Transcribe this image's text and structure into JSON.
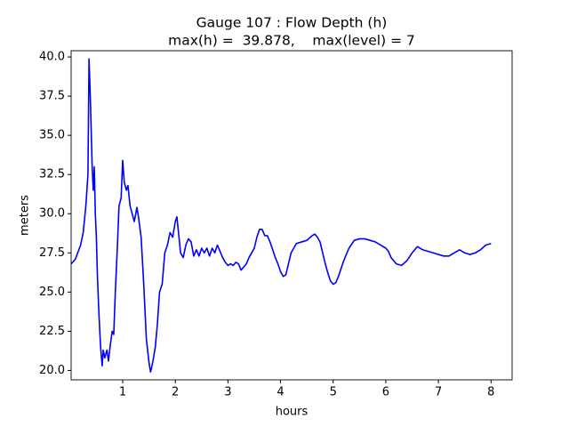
{
  "chart_data": {
    "type": "line",
    "title": "Gauge 107 : Flow Depth (h)",
    "subtitle": "max(h) =  39.878,    max(level) = 7",
    "xlabel": "hours",
    "ylabel": "meters",
    "color": "#0000ff",
    "x": [
      0.02,
      0.1,
      0.2,
      0.25,
      0.3,
      0.34,
      0.36,
      0.38,
      0.4,
      0.42,
      0.44,
      0.46,
      0.48,
      0.5,
      0.52,
      0.55,
      0.58,
      0.61,
      0.63,
      0.66,
      0.7,
      0.73,
      0.76,
      0.8,
      0.83,
      0.86,
      0.9,
      0.93,
      0.97,
      1.0,
      1.03,
      1.07,
      1.1,
      1.14,
      1.18,
      1.22,
      1.27,
      1.3,
      1.35,
      1.4,
      1.45,
      1.5,
      1.53,
      1.57,
      1.62,
      1.66,
      1.7,
      1.75,
      1.8,
      1.85,
      1.9,
      1.95,
      2.0,
      2.03,
      2.07,
      2.1,
      2.15,
      2.2,
      2.25,
      2.3,
      2.35,
      2.4,
      2.45,
      2.5,
      2.55,
      2.6,
      2.65,
      2.7,
      2.75,
      2.8,
      2.85,
      2.9,
      2.95,
      3.0,
      3.05,
      3.1,
      3.15,
      3.2,
      3.25,
      3.3,
      3.35,
      3.4,
      3.5,
      3.55,
      3.6,
      3.65,
      3.7,
      3.75,
      3.8,
      3.85,
      3.9,
      3.95,
      4.0,
      4.05,
      4.1,
      4.15,
      4.2,
      4.3,
      4.4,
      4.5,
      4.6,
      4.65,
      4.7,
      4.75,
      4.8,
      4.85,
      4.9,
      4.95,
      5.0,
      5.05,
      5.1,
      5.2,
      5.3,
      5.4,
      5.5,
      5.6,
      5.7,
      5.8,
      5.9,
      6.0,
      6.05,
      6.1,
      6.2,
      6.3,
      6.4,
      6.5,
      6.6,
      6.7,
      6.8,
      6.9,
      7.0,
      7.1,
      7.2,
      7.3,
      7.4,
      7.5,
      7.6,
      7.7,
      7.8,
      7.9,
      8.0
    ],
    "values": [
      26.8,
      27.1,
      28.0,
      28.8,
      30.5,
      32.5,
      39.878,
      38,
      35.5,
      33,
      31.5,
      33,
      30,
      28.5,
      26,
      23.5,
      21.5,
      20.3,
      21.3,
      20.8,
      21.3,
      20.6,
      21.5,
      22.5,
      22.3,
      25,
      28,
      30.5,
      31,
      33.4,
      32,
      31.5,
      31.8,
      30.5,
      30.0,
      29.5,
      30.4,
      29.8,
      28.5,
      25.5,
      22,
      20.5,
      19.9,
      20.5,
      21.5,
      23,
      25,
      25.5,
      27.5,
      28,
      28.8,
      28.5,
      29.5,
      29.8,
      28.5,
      27.5,
      27.2,
      28,
      28.4,
      28.2,
      27.3,
      27.7,
      27.3,
      27.8,
      27.5,
      27.8,
      27.3,
      27.8,
      27.5,
      28.0,
      27.6,
      27.2,
      26.9,
      26.7,
      26.8,
      26.7,
      26.9,
      26.8,
      26.4,
      26.6,
      26.8,
      27.2,
      27.8,
      28.5,
      29.0,
      29.0,
      28.6,
      28.6,
      28.2,
      27.7,
      27.2,
      26.8,
      26.3,
      26.0,
      26.1,
      26.8,
      27.5,
      28.1,
      28.2,
      28.3,
      28.6,
      28.7,
      28.5,
      28.2,
      27.5,
      26.8,
      26.2,
      25.7,
      25.5,
      25.6,
      26,
      27,
      27.8,
      28.3,
      28.4,
      28.4,
      28.3,
      28.2,
      28.0,
      27.8,
      27.6,
      27.2,
      26.8,
      26.7,
      27.0,
      27.5,
      27.9,
      27.7,
      27.6,
      27.5,
      27.4,
      27.3,
      27.3,
      27.5,
      27.7,
      27.5,
      27.4,
      27.5,
      27.7,
      28.0,
      28.1
    ],
    "xlim": [
      0.02,
      8.4
    ],
    "xticks": [
      1,
      2,
      3,
      4,
      5,
      6,
      7,
      8
    ],
    "ylim": [
      19.4,
      40.4
    ],
    "yticks": [
      {
        "value": 20,
        "label": "20.0"
      },
      22.5,
      {
        "value": 25,
        "label": "25.0"
      },
      27.5,
      {
        "value": 30,
        "label": "30.0"
      },
      32.5,
      {
        "value": 35,
        "label": "35.0"
      },
      37.5,
      {
        "value": 40,
        "label": "40.0"
      }
    ]
  }
}
